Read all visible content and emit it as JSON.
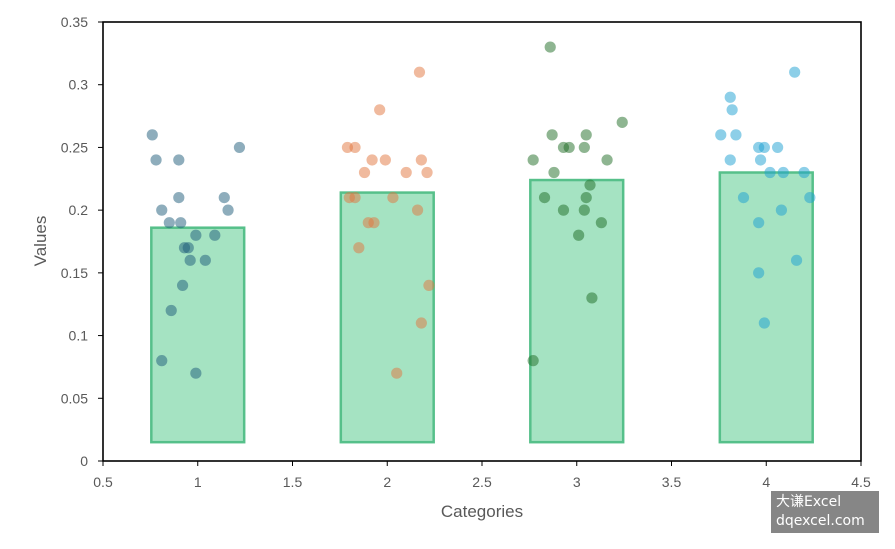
{
  "chart_data": {
    "type": "scatter",
    "xlabel": "Categories",
    "ylabel": "Values",
    "xlim": [
      0.5,
      4.5
    ],
    "ylim": [
      0,
      0.35
    ],
    "x_ticks": [
      "0.5",
      "1",
      "1.5",
      "2",
      "2.5",
      "3",
      "3.5",
      "4",
      "4.5"
    ],
    "y_ticks": [
      "0",
      "0.05",
      "0.1",
      "0.15",
      "0.2",
      "0.25",
      "0.3",
      "0.35"
    ],
    "grid": false,
    "legend": "none",
    "boxes": [
      {
        "x": 1,
        "top": 0.186,
        "bottom": 0.015,
        "width": 0.49
      },
      {
        "x": 2,
        "top": 0.214,
        "bottom": 0.015,
        "width": 0.49
      },
      {
        "x": 3,
        "top": 0.224,
        "bottom": 0.015,
        "width": 0.49
      },
      {
        "x": 4,
        "top": 0.23,
        "bottom": 0.015,
        "width": 0.49
      }
    ],
    "box_fill": "#a5e3c2",
    "box_stroke": "#56c08a",
    "series": [
      {
        "category": 1,
        "color": "#1d5c7a",
        "points": [
          [
            0.76,
            0.26
          ],
          [
            0.9,
            0.24
          ],
          [
            0.78,
            0.24
          ],
          [
            1.22,
            0.25
          ],
          [
            0.81,
            0.2
          ],
          [
            0.91,
            0.19
          ],
          [
            0.85,
            0.19
          ],
          [
            0.9,
            0.21
          ],
          [
            1.14,
            0.21
          ],
          [
            1.16,
            0.2
          ],
          [
            0.93,
            0.17
          ],
          [
            0.99,
            0.18
          ],
          [
            1.09,
            0.18
          ],
          [
            0.95,
            0.17
          ],
          [
            0.96,
            0.16
          ],
          [
            1.04,
            0.16
          ],
          [
            0.92,
            0.14
          ],
          [
            0.86,
            0.12
          ],
          [
            0.81,
            0.08
          ],
          [
            0.99,
            0.07
          ]
        ]
      },
      {
        "category": 2,
        "color": "#e2763e",
        "points": [
          [
            1.79,
            0.25
          ],
          [
            1.83,
            0.25
          ],
          [
            1.96,
            0.28
          ],
          [
            2.17,
            0.31
          ],
          [
            1.92,
            0.24
          ],
          [
            1.99,
            0.24
          ],
          [
            2.18,
            0.24
          ],
          [
            1.88,
            0.23
          ],
          [
            2.1,
            0.23
          ],
          [
            2.21,
            0.23
          ],
          [
            1.8,
            0.21
          ],
          [
            1.83,
            0.21
          ],
          [
            2.03,
            0.21
          ],
          [
            2.16,
            0.2
          ],
          [
            1.9,
            0.19
          ],
          [
            1.93,
            0.19
          ],
          [
            1.85,
            0.17
          ],
          [
            2.22,
            0.14
          ],
          [
            2.18,
            0.11
          ],
          [
            2.05,
            0.07
          ]
        ]
      },
      {
        "category": 3,
        "color": "#1e6b24",
        "points": [
          [
            2.86,
            0.33
          ],
          [
            3.24,
            0.27
          ],
          [
            2.87,
            0.26
          ],
          [
            3.05,
            0.26
          ],
          [
            2.93,
            0.25
          ],
          [
            2.96,
            0.25
          ],
          [
            3.04,
            0.25
          ],
          [
            2.77,
            0.24
          ],
          [
            3.16,
            0.24
          ],
          [
            2.88,
            0.23
          ],
          [
            3.07,
            0.22
          ],
          [
            2.83,
            0.21
          ],
          [
            3.05,
            0.21
          ],
          [
            2.93,
            0.2
          ],
          [
            3.04,
            0.2
          ],
          [
            3.13,
            0.19
          ],
          [
            3.01,
            0.18
          ],
          [
            3.08,
            0.13
          ],
          [
            2.77,
            0.08
          ]
        ]
      },
      {
        "category": 4,
        "color": "#1b9fd1",
        "points": [
          [
            4.15,
            0.31
          ],
          [
            3.81,
            0.29
          ],
          [
            3.82,
            0.28
          ],
          [
            3.76,
            0.26
          ],
          [
            3.84,
            0.26
          ],
          [
            3.96,
            0.25
          ],
          [
            3.99,
            0.25
          ],
          [
            4.06,
            0.25
          ],
          [
            3.81,
            0.24
          ],
          [
            3.97,
            0.24
          ],
          [
            4.02,
            0.23
          ],
          [
            4.09,
            0.23
          ],
          [
            4.2,
            0.23
          ],
          [
            3.88,
            0.21
          ],
          [
            4.23,
            0.21
          ],
          [
            4.08,
            0.2
          ],
          [
            3.96,
            0.19
          ],
          [
            4.16,
            0.16
          ],
          [
            3.96,
            0.15
          ],
          [
            3.99,
            0.11
          ]
        ]
      }
    ]
  },
  "watermark": {
    "line1": "大谦Excel",
    "line2": "dqexcel.com"
  }
}
